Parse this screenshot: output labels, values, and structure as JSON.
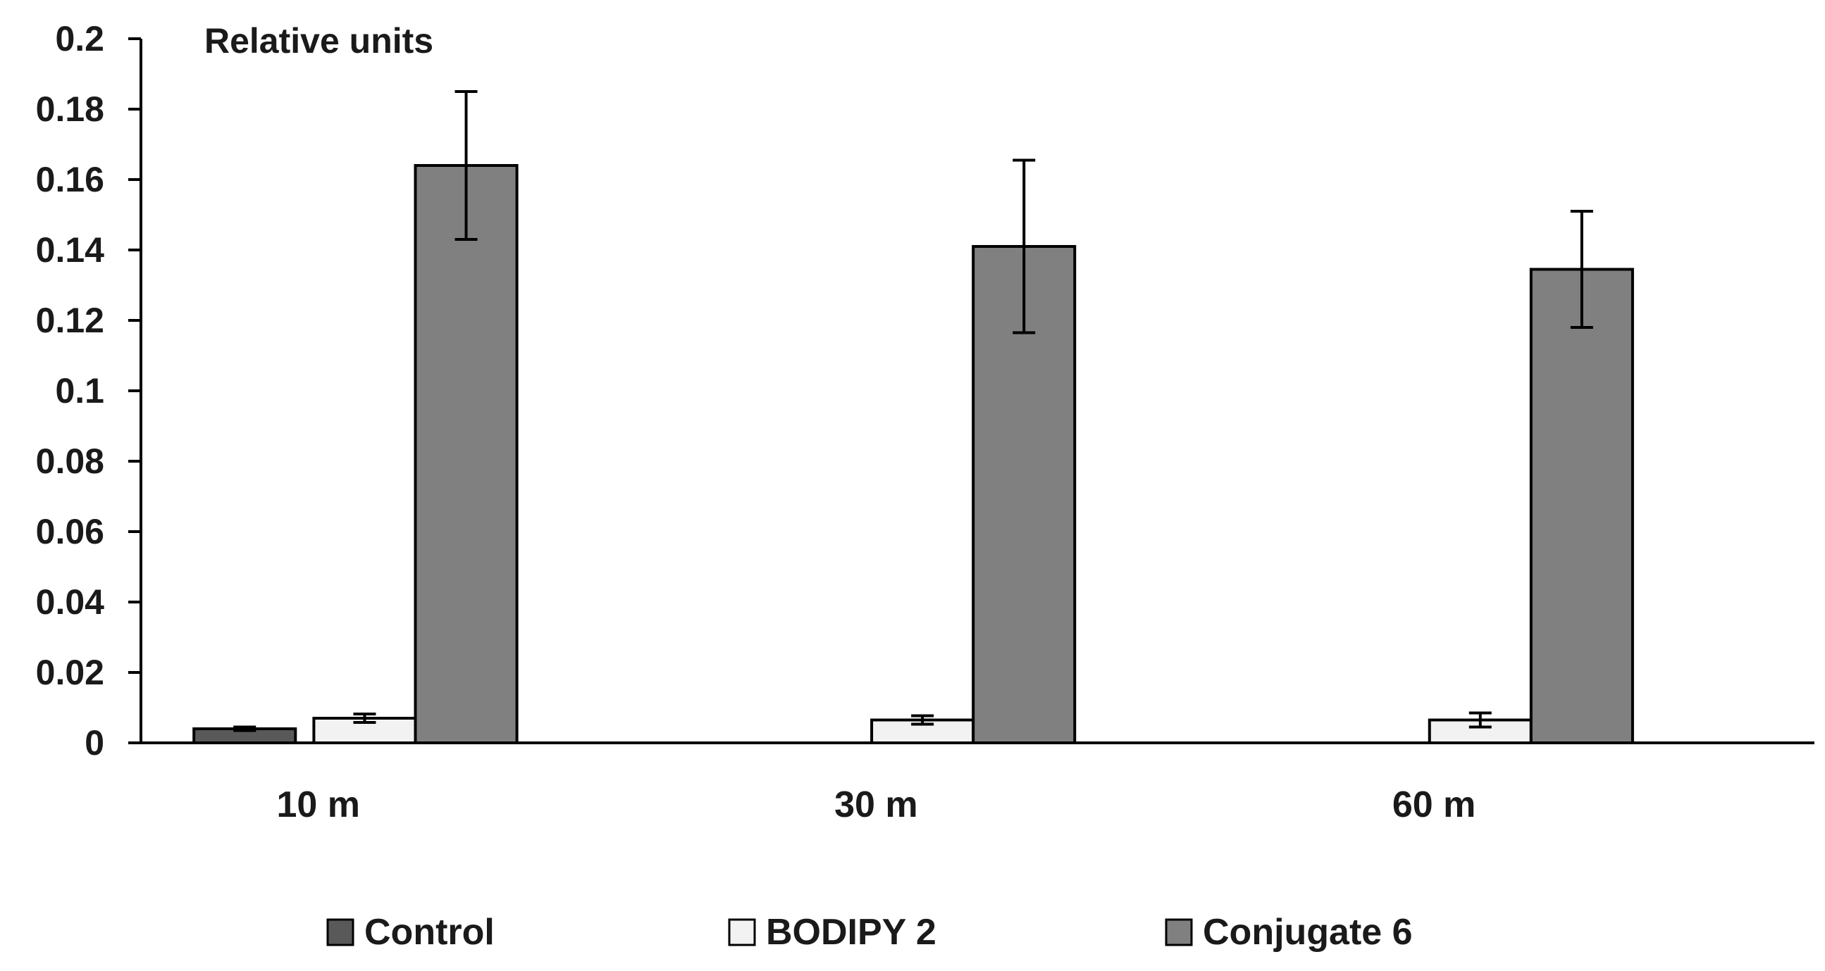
{
  "chart_data": {
    "type": "bar",
    "title": "",
    "ylabel": "Relative units",
    "xlabel": "",
    "categories": [
      "10 m",
      "30 m",
      "60 m"
    ],
    "ylim": [
      0,
      0.2
    ],
    "yticks": [
      "0",
      "0.02",
      "0.04",
      "0.06",
      "0.08",
      "0.1",
      "0.12",
      "0.14",
      "0.16",
      "0.18",
      "0.2"
    ],
    "grid": false,
    "legend_position": "bottom",
    "series": [
      {
        "name": "Control",
        "color": "#595959",
        "values": [
          0.004,
          null,
          null
        ],
        "errors": [
          0.0005,
          null,
          null
        ]
      },
      {
        "name": "BODIPY 2",
        "color": "#f2f2f2",
        "values": [
          0.007,
          0.0065,
          0.0065
        ],
        "errors": [
          0.0012,
          0.0012,
          0.002
        ]
      },
      {
        "name": "Conjugate 6",
        "color": "#808080",
        "values": [
          0.164,
          0.141,
          0.1345
        ],
        "errors": [
          0.021,
          0.0245,
          0.0165
        ]
      }
    ]
  }
}
